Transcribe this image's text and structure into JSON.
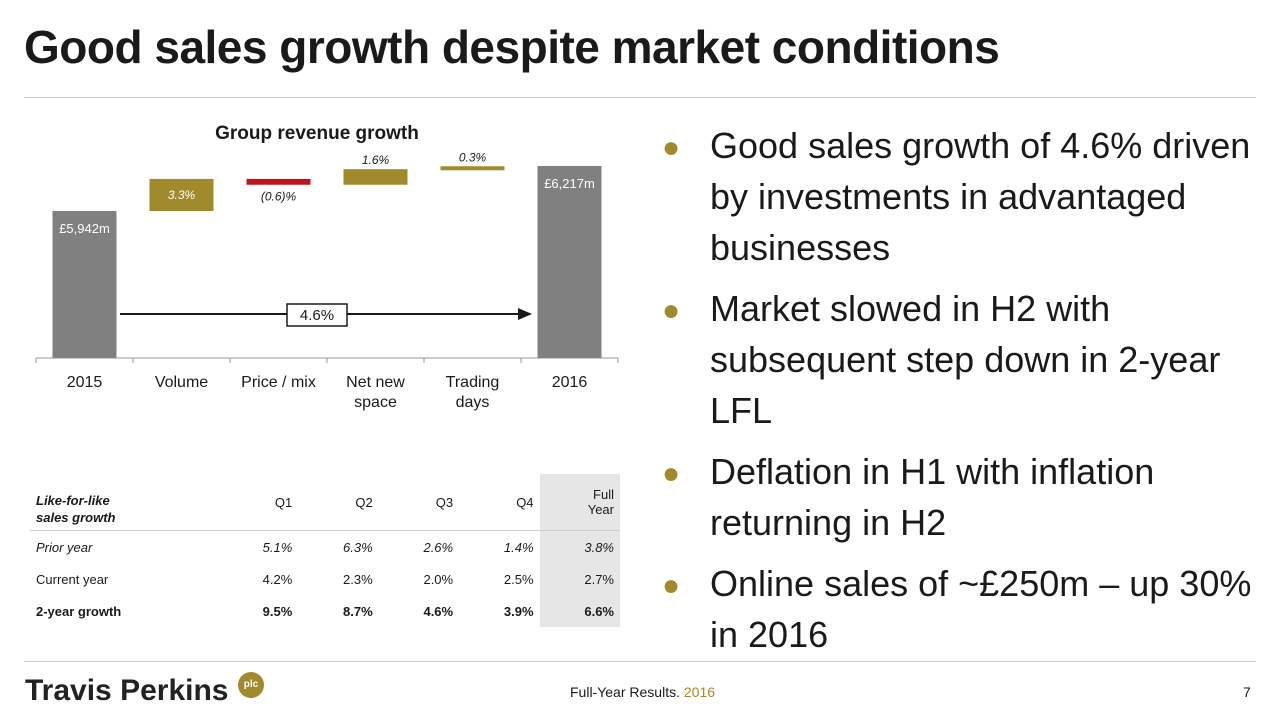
{
  "title": "Good sales growth despite market conditions",
  "colors": {
    "gray_bar": "#808080",
    "gold": "#a18a2b",
    "red": "#c0121b",
    "text": "#1a1a1a"
  },
  "chart_data": {
    "type": "bar",
    "subtype": "waterfall",
    "title": "Group revenue growth",
    "categories": [
      "2015",
      "Volume",
      "Price / mix",
      "Net new space",
      "Trading days",
      "2016"
    ],
    "category_label_lines": [
      [
        "2015"
      ],
      [
        "Volume"
      ],
      [
        "Price / mix"
      ],
      [
        "Net new",
        "space"
      ],
      [
        "Trading",
        "days"
      ],
      [
        "2016"
      ]
    ],
    "values": [
      5942,
      3.3,
      -0.6,
      1.6,
      0.3,
      6217
    ],
    "data_labels": [
      "£5,942m",
      "3.3%",
      "(0.6)%",
      "1.6%",
      "0.3%",
      "£6,217m"
    ],
    "units": [
      "£m",
      "%",
      "%",
      "%",
      "%",
      "£m"
    ],
    "arrow_label": "4.6%",
    "bar_colors": [
      "#808080",
      "#a18a2b",
      "#c0121b",
      "#a18a2b",
      "#a18a2b",
      "#808080"
    ]
  },
  "table": {
    "header": {
      "rowlabel": [
        "Like-for-like",
        "sales growth"
      ],
      "cols": [
        "Q1",
        "Q2",
        "Q3",
        "Q4"
      ],
      "full": [
        "Full",
        "Year"
      ]
    },
    "rows": [
      {
        "label": "Prior year",
        "values": [
          "5.1%",
          "6.3%",
          "2.6%",
          "1.4%",
          "3.8%"
        ]
      },
      {
        "label": "Current year",
        "values": [
          "4.2%",
          "2.3%",
          "2.0%",
          "2.5%",
          "2.7%"
        ]
      },
      {
        "label": "2-year growth",
        "values": [
          "9.5%",
          "8.7%",
          "4.6%",
          "3.9%",
          "6.6%"
        ]
      }
    ]
  },
  "bullets": [
    "Good sales growth of 4.6% driven by investments in advantaged businesses",
    "Market slowed in H2 with subsequent step down in 2-year LFL",
    "Deflation in H1 with inflation returning in H2",
    "Online sales of ~£250m – up 30% in 2016"
  ],
  "footer": {
    "logo": "Travis Perkins",
    "plc": "plc",
    "text": "Full-Year Results.",
    "year": "2016",
    "page": "7"
  }
}
